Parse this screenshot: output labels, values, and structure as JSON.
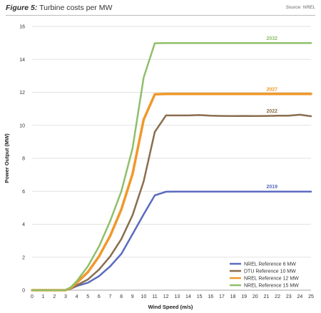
{
  "figure": {
    "label": "Figure 5:",
    "title": "Turbine costs per MW",
    "source": "Source: NREL"
  },
  "chart_data": {
    "type": "line",
    "xlabel": "Wind Speed (m/s)",
    "ylabel": "Power Output (MW)",
    "xlim": [
      0,
      25
    ],
    "ylim": [
      0,
      16
    ],
    "x_ticks": [
      0,
      1,
      2,
      3,
      4,
      5,
      6,
      7,
      8,
      9,
      10,
      11,
      12,
      13,
      14,
      15,
      16,
      17,
      18,
      19,
      20,
      21,
      22,
      23,
      24,
      25
    ],
    "y_ticks": [
      0,
      2,
      4,
      6,
      8,
      10,
      12,
      14,
      16
    ],
    "grid": "horizontal",
    "legend_position": "bottom-right",
    "series": [
      {
        "name": "NREL Reference 6 MW",
        "color": "#5b6bbf",
        "stroke_width": 2.5,
        "annotation": "2019",
        "x": [
          0,
          1,
          2,
          3,
          3.5,
          4,
          5,
          6,
          7,
          8,
          9,
          10,
          11,
          12,
          13,
          14,
          15,
          16,
          17,
          18,
          19,
          20,
          21,
          22,
          23,
          24,
          25
        ],
        "values": [
          0,
          0,
          0,
          0,
          0.1,
          0.25,
          0.45,
          0.85,
          1.45,
          2.2,
          3.4,
          4.6,
          5.75,
          5.97,
          5.98,
          5.98,
          5.98,
          5.98,
          5.98,
          5.98,
          5.98,
          5.98,
          5.98,
          5.98,
          5.98,
          5.98,
          5.98
        ]
      },
      {
        "name": "DTU Reference 10 MW",
        "color": "#8a6d4e",
        "stroke_width": 2.5,
        "annotation": "2022",
        "x": [
          0,
          1,
          2,
          3,
          3.5,
          4,
          5,
          6,
          7,
          8,
          9,
          10,
          11,
          12,
          13,
          14,
          15,
          16,
          17,
          18,
          19,
          20,
          21,
          22,
          23,
          24,
          25
        ],
        "values": [
          0,
          0,
          0,
          0,
          0.1,
          0.3,
          0.65,
          1.25,
          2.05,
          3.1,
          4.55,
          6.6,
          9.6,
          10.6,
          10.6,
          10.6,
          10.62,
          10.58,
          10.57,
          10.56,
          10.57,
          10.56,
          10.57,
          10.58,
          10.58,
          10.64,
          10.55
        ]
      },
      {
        "name": "NREL Reference 12 MW",
        "color": "#f0982a",
        "stroke_width": 3.5,
        "annotation": "2027",
        "x": [
          0,
          1,
          2,
          3,
          3.5,
          4,
          5,
          6,
          7,
          8,
          9,
          10,
          11,
          12,
          13,
          14,
          15,
          16,
          17,
          18,
          19,
          20,
          21,
          22,
          23,
          24,
          25
        ],
        "values": [
          0,
          0,
          0,
          0,
          0.15,
          0.45,
          1.1,
          2.05,
          3.3,
          4.9,
          7.05,
          10.35,
          11.88,
          11.9,
          11.9,
          11.9,
          11.9,
          11.9,
          11.9,
          11.9,
          11.9,
          11.9,
          11.9,
          11.9,
          11.9,
          11.9,
          11.9
        ]
      },
      {
        "name": "NREL Reference 15 MW",
        "color": "#8fbf6a",
        "stroke_width": 2.5,
        "annotation": "2032",
        "x": [
          0,
          1,
          2,
          3,
          3.5,
          4,
          5,
          6,
          7,
          8,
          9,
          10,
          11,
          12,
          13,
          14,
          15,
          16,
          17,
          18,
          19,
          20,
          21,
          22,
          23,
          24,
          25
        ],
        "values": [
          0,
          0,
          0,
          0,
          0.2,
          0.55,
          1.45,
          2.65,
          4.2,
          6.0,
          8.6,
          12.9,
          14.98,
          14.99,
          14.99,
          14.99,
          14.99,
          14.99,
          14.99,
          14.99,
          14.99,
          14.99,
          14.99,
          14.99,
          14.99,
          14.99,
          14.99
        ]
      }
    ]
  }
}
